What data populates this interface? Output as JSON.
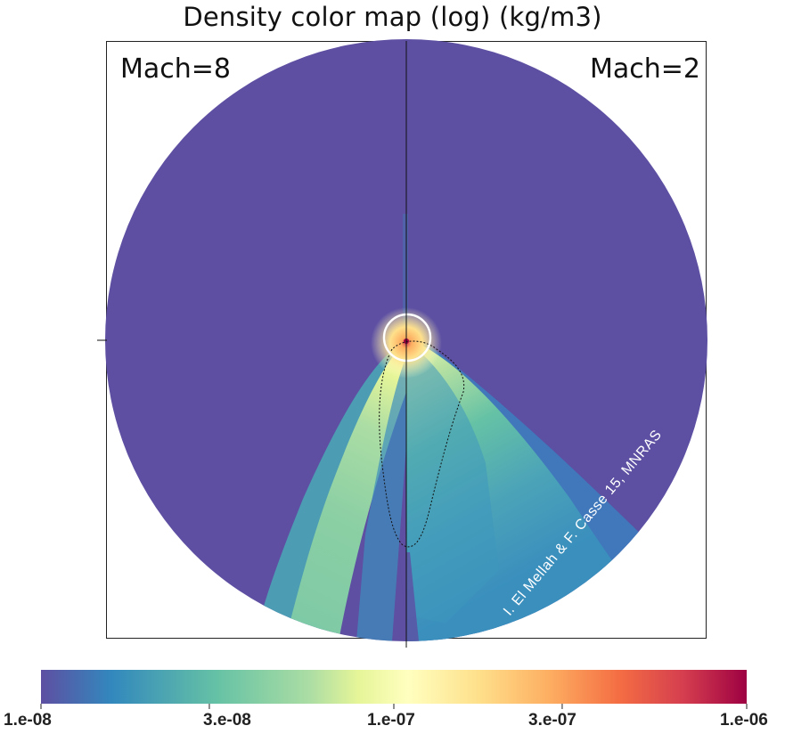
{
  "title": "Density color map (log) (kg/m3)",
  "panel_labels": {
    "left": "Mach=8",
    "right": "Mach=2"
  },
  "credit": "I. El Mellah & F. Casse 15, MNRAS",
  "colorbar": {
    "scale": "log",
    "min": 1e-08,
    "max": 1e-06,
    "ticks": [
      "1.e-08",
      "3.e-08",
      "1.e-07",
      "3.e-07",
      "1.e-06"
    ],
    "colors": [
      "#5e4fa2",
      "#3288bd",
      "#66c2a5",
      "#abdda4",
      "#e6f598",
      "#ffffbf",
      "#fee08b",
      "#fdae61",
      "#f46d43",
      "#d53e4f",
      "#9e0142"
    ]
  },
  "annotations": {
    "accretor_circle_color": "#ffffff",
    "shock_contour": "dotted black outline",
    "divider": "vertical line"
  }
}
